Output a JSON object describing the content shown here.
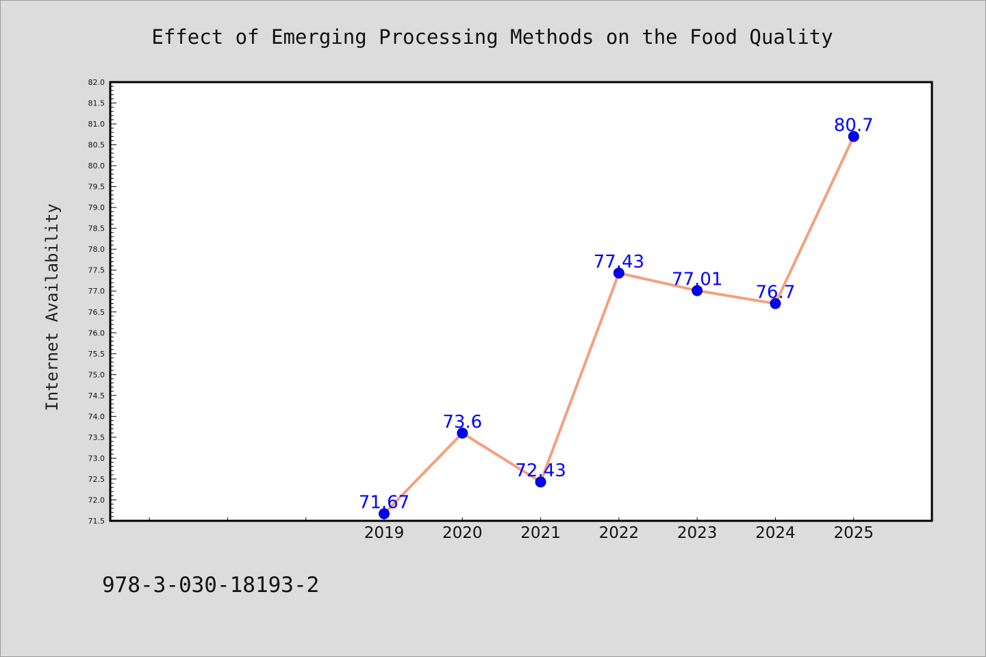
{
  "chart_data": {
    "type": "line",
    "title": "Effect of Emerging Processing Methods on the Food Quality",
    "xlabel": "",
    "ylabel": "Internet Availability",
    "categories": [
      "2019",
      "2020",
      "2021",
      "2022",
      "2023",
      "2024",
      "2025"
    ],
    "series": [
      {
        "values": [
          71.67,
          73.6,
          72.43,
          77.43,
          77.01,
          76.7,
          80.7
        ],
        "data_labels": [
          "71.67",
          "73.6",
          "72.43",
          "77.43",
          "77.01",
          "76.7",
          "80.7"
        ]
      }
    ],
    "x_range": [
      2015.5,
      2026.0
    ],
    "ylim": [
      71.5,
      82.0
    ],
    "y_major_step": 0.5,
    "y_tick_labels": [
      "71.5",
      "72.0",
      "72.5",
      "73.0",
      "73.5",
      "74.0",
      "74.5",
      "75.0",
      "75.5",
      "76.0",
      "76.5",
      "77.0",
      "77.5",
      "78.0",
      "78.5",
      "79.0",
      "79.5",
      "80.0",
      "80.5",
      "81.0",
      "81.5",
      "82.0"
    ],
    "grid": false,
    "legend": "none",
    "colors": {
      "line": "#f4a07e",
      "marker": "#0000ff",
      "data_label": "#0000ff",
      "plot_background": "#ffffff",
      "figure_background": "#dcdcdc"
    }
  },
  "footer": {
    "text": "978-3-030-18193-2"
  }
}
